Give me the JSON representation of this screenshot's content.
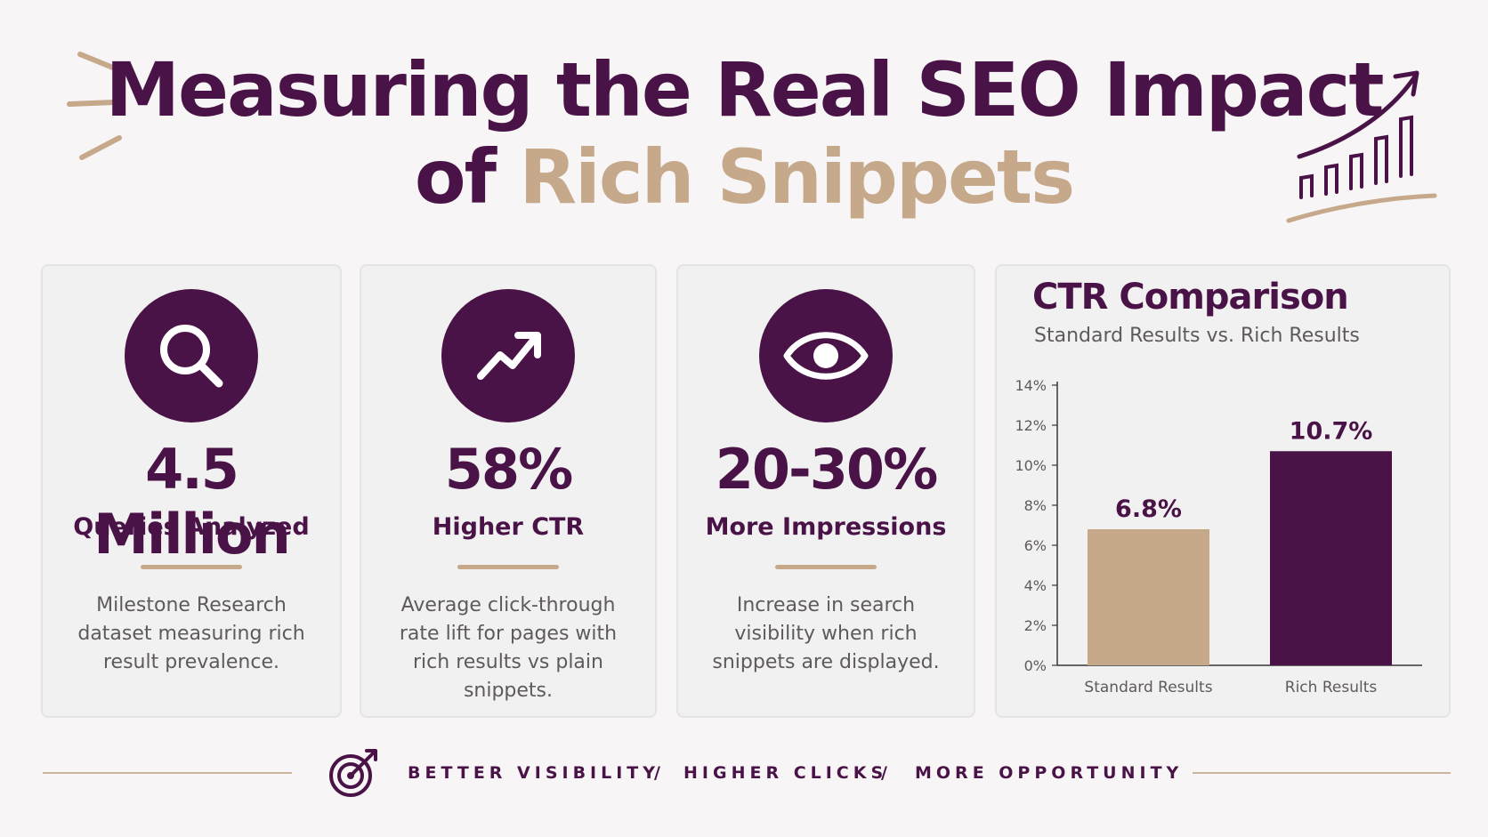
{
  "header": {
    "title_line1": "Measuring the Real SEO Impact",
    "title_line2_a": "of",
    "title_line2_b": "Rich Snippets"
  },
  "stats": [
    {
      "icon": "magnifier-icon",
      "value": "4.5 Million",
      "label": "Queries Analyzed",
      "desc": "Milestone Research dataset measuring rich result prevalence."
    },
    {
      "icon": "trend-up-icon",
      "value": "58%",
      "label": "Higher CTR",
      "desc": "Average click-through rate lift for pages with rich results vs plain snippets."
    },
    {
      "icon": "eye-icon",
      "value": "20-30%",
      "label": "More Impressions",
      "desc": "Increase in search visibility when rich snippets are displayed."
    }
  ],
  "chart_data": {
    "type": "bar",
    "title": "CTR Comparison",
    "subtitle": "Standard Results vs. Rich Results",
    "categories": [
      "Standard Results",
      "Rich Results"
    ],
    "values": [
      6.8,
      10.7
    ],
    "value_labels": [
      "6.8%",
      "10.7%"
    ],
    "bar_colors": [
      "#c6a88a",
      "#4a1347"
    ],
    "ylim": [
      0,
      14
    ],
    "yticks": [
      "0%",
      "2%",
      "4%",
      "6%",
      "8%",
      "10%",
      "12%",
      "14%"
    ],
    "grid": false
  },
  "footer": {
    "items": [
      "BETTER VISIBILITY",
      "/",
      "HIGHER CLICKS",
      "/",
      "MORE OPPORTUNITY"
    ]
  },
  "colors": {
    "primary": "#4a1347",
    "accent": "#c6a88a",
    "background": "#f7f5f5"
  }
}
